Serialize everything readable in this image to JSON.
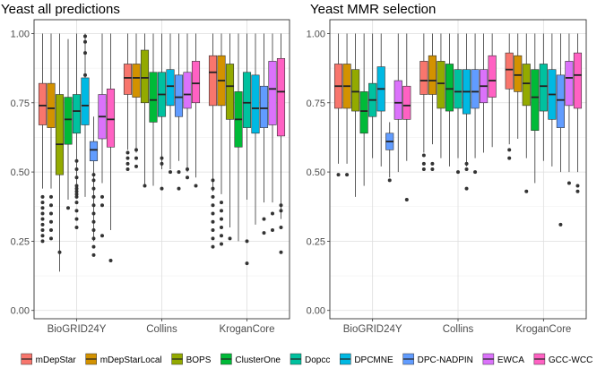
{
  "colors": {
    "mDepStar": "#F8766D",
    "mDepStarLocal": "#D39200",
    "BOPS": "#93AA00",
    "ClusterOne": "#00BA38",
    "Dopcc": "#00C19F",
    "DPCMNE": "#00B9E3",
    "DPC-NADPIN": "#619CFF",
    "EWCA": "#DB72FB",
    "GCC-WCC": "#FF61C3"
  },
  "chart_data": [
    {
      "type": "box",
      "title": "Yeast all predictions",
      "categories": [
        "BioGRID24Y",
        "Collins",
        "KroganCore"
      ],
      "yticks": [
        "0.00",
        "0.25",
        "0.50",
        "0.75",
        "1.00"
      ],
      "ylim": [
        -0.03,
        1.05
      ],
      "grid": true,
      "series": [
        {
          "name": "mDepStar",
          "boxes": [
            {
              "lw": 0.44,
              "q1": 0.67,
              "med": 0.74,
              "q3": 0.82,
              "uw": 1.0,
              "out": [
                0.25,
                0.27,
                0.29,
                0.31,
                0.33,
                0.35,
                0.37,
                0.39,
                0.41
              ]
            },
            {
              "lw": 0.58,
              "q1": 0.78,
              "med": 0.84,
              "q3": 0.89,
              "uw": 1.0,
              "out": [
                0.51,
                0.53,
                0.55,
                0.57
              ]
            },
            {
              "lw": 0.43,
              "q1": 0.74,
              "med": 0.86,
              "q3": 0.92,
              "uw": 1.0,
              "out": [
                0.23,
                0.26,
                0.29,
                0.32,
                0.35,
                0.38,
                0.41,
                0.44,
                0.47
              ]
            }
          ]
        },
        {
          "name": "mDepStarLocal",
          "boxes": [
            {
              "lw": 0.44,
              "q1": 0.66,
              "med": 0.73,
              "q3": 0.82,
              "uw": 1.0,
              "out": [
                0.26,
                0.29,
                0.32,
                0.35,
                0.38,
                0.41
              ]
            },
            {
              "lw": 0.57,
              "q1": 0.77,
              "med": 0.84,
              "q3": 0.89,
              "uw": 1.0,
              "out": [
                0.52,
                0.55,
                0.58
              ]
            },
            {
              "lw": 0.42,
              "q1": 0.74,
              "med": 0.83,
              "q3": 0.92,
              "uw": 1.0,
              "out": [
                0.24,
                0.27,
                0.3,
                0.33,
                0.36,
                0.39
              ]
            }
          ]
        },
        {
          "name": "BOPS",
          "boxes": [
            {
              "lw": 0.14,
              "q1": 0.49,
              "med": 0.6,
              "q3": 0.78,
              "uw": 1.0,
              "out": [
                0.21
              ]
            },
            {
              "lw": 0.45,
              "q1": 0.75,
              "med": 0.84,
              "q3": 0.94,
              "uw": 1.0,
              "out": [
                0.45
              ]
            },
            {
              "lw": 0.3,
              "q1": 0.69,
              "med": 0.81,
              "q3": 0.89,
              "uw": 1.0,
              "out": [
                0.26
              ]
            }
          ]
        },
        {
          "name": "ClusterOne",
          "boxes": [
            {
              "lw": 0.4,
              "q1": 0.6,
              "med": 0.69,
              "q3": 0.77,
              "uw": 0.98,
              "out": [
                0.37
              ]
            },
            {
              "lw": 0.45,
              "q1": 0.68,
              "med": 0.76,
              "q3": 0.86,
              "uw": 1.0,
              "out": []
            },
            {
              "lw": 0.25,
              "q1": 0.59,
              "med": 0.69,
              "q3": 0.79,
              "uw": 1.0,
              "out": []
            }
          ]
        },
        {
          "name": "Dopcc",
          "boxes": [
            {
              "lw": 0.43,
              "q1": 0.64,
              "med": 0.72,
              "q3": 0.78,
              "uw": 1.0,
              "out": [
                0.3,
                0.33,
                0.36,
                0.39,
                0.41,
                0.42,
                0.43,
                0.44,
                0.45,
                0.48,
                0.51,
                0.54
              ]
            },
            {
              "lw": 0.51,
              "q1": 0.7,
              "med": 0.78,
              "q3": 0.86,
              "uw": 1.0,
              "out": [
                0.44,
                0.53,
                0.55
              ]
            },
            {
              "lw": 0.4,
              "q1": 0.66,
              "med": 0.75,
              "q3": 0.86,
              "uw": 1.0,
              "out": [
                0.17,
                0.25
              ]
            }
          ]
        },
        {
          "name": "DPCMNE",
          "boxes": [
            {
              "lw": 0.41,
              "q1": 0.67,
              "med": 0.74,
              "q3": 0.84,
              "uw": 1.0,
              "out": [
                0.99,
                0.97,
                0.93,
                0.85
              ]
            },
            {
              "lw": 0.51,
              "q1": 0.74,
              "med": 0.81,
              "q3": 0.87,
              "uw": 1.0,
              "out": [
                0.5
              ]
            },
            {
              "lw": 0.31,
              "q1": 0.64,
              "med": 0.73,
              "q3": 0.85,
              "uw": 1.0,
              "out": []
            }
          ]
        },
        {
          "name": "DPC-NADPIN",
          "boxes": [
            {
              "lw": 0.25,
              "q1": 0.54,
              "med": 0.58,
              "q3": 0.61,
              "uw": 0.7,
              "out": [
                0.2,
                0.23,
                0.26,
                0.29,
                0.32,
                0.35,
                0.38,
                0.41,
                0.44,
                0.47,
                0.49
              ]
            },
            {
              "lw": 0.54,
              "q1": 0.7,
              "med": 0.77,
              "q3": 0.85,
              "uw": 1.0,
              "out": [
                0.44,
                0.5
              ]
            },
            {
              "lw": 0.39,
              "q1": 0.66,
              "med": 0.73,
              "q3": 0.81,
              "uw": 1.0,
              "out": [
                0.28,
                0.33
              ]
            }
          ]
        },
        {
          "name": "EWCA",
          "boxes": [
            {
              "lw": 0.46,
              "q1": 0.62,
              "med": 0.7,
              "q3": 0.78,
              "uw": 1.0,
              "out": [
                0.27,
                0.38,
                0.41
              ]
            },
            {
              "lw": 0.5,
              "q1": 0.73,
              "med": 0.78,
              "q3": 0.86,
              "uw": 1.0,
              "out": [
                0.48,
                0.51
              ]
            },
            {
              "lw": 0.39,
              "q1": 0.67,
              "med": 0.8,
              "q3": 0.9,
              "uw": 1.0,
              "out": [
                0.29,
                0.35
              ]
            }
          ]
        },
        {
          "name": "GCC-WCC",
          "boxes": [
            {
              "lw": 0.29,
              "q1": 0.59,
              "med": 0.69,
              "q3": 0.8,
              "uw": 1.0,
              "out": [
                0.18
              ]
            },
            {
              "lw": 0.48,
              "q1": 0.75,
              "med": 0.82,
              "q3": 0.9,
              "uw": 1.0,
              "out": [
                0.45
              ]
            },
            {
              "lw": 0.33,
              "q1": 0.63,
              "med": 0.79,
              "q3": 0.91,
              "uw": 1.0,
              "out": [
                0.21,
                0.3,
                0.36,
                0.38
              ]
            }
          ]
        }
      ]
    },
    {
      "type": "box",
      "title": "Yeast MMR selection",
      "categories": [
        "BioGRID24Y",
        "Collins",
        "KroganCore"
      ],
      "yticks": [
        "0.00",
        "0.25",
        "0.50",
        "0.75",
        "1.00"
      ],
      "ylim": [
        -0.03,
        1.05
      ],
      "grid": true,
      "series": [
        {
          "name": "mDepStar",
          "boxes": [
            {
              "lw": 0.53,
              "q1": 0.73,
              "med": 0.81,
              "q3": 0.89,
              "uw": 1.0,
              "out": [
                0.49
              ]
            },
            {
              "lw": 0.57,
              "q1": 0.78,
              "med": 0.83,
              "q3": 0.9,
              "uw": 1.0,
              "out": [
                0.51,
                0.53,
                0.56
              ]
            },
            {
              "lw": 0.6,
              "q1": 0.8,
              "med": 0.87,
              "q3": 0.93,
              "uw": 1.0,
              "out": [
                0.55,
                0.58
              ]
            }
          ]
        },
        {
          "name": "mDepStarLocal",
          "boxes": [
            {
              "lw": 0.53,
              "q1": 0.73,
              "med": 0.81,
              "q3": 0.89,
              "uw": 1.0,
              "out": [
                0.49
              ]
            },
            {
              "lw": 0.6,
              "q1": 0.78,
              "med": 0.83,
              "q3": 0.92,
              "uw": 1.0,
              "out": [
                0.51,
                0.53
              ]
            },
            {
              "lw": 0.62,
              "q1": 0.79,
              "med": 0.85,
              "q3": 0.92,
              "uw": 1.0,
              "out": []
            }
          ]
        },
        {
          "name": "BOPS",
          "boxes": [
            {
              "lw": 0.41,
              "q1": 0.72,
              "med": 0.79,
              "q3": 0.87,
              "uw": 1.0,
              "out": []
            },
            {
              "lw": 0.55,
              "q1": 0.73,
              "med": 0.82,
              "q3": 0.9,
              "uw": 1.0,
              "out": []
            },
            {
              "lw": 0.55,
              "q1": 0.74,
              "med": 0.82,
              "q3": 0.89,
              "uw": 1.0,
              "out": [
                0.43
              ]
            }
          ]
        },
        {
          "name": "ClusterOne",
          "boxes": [
            {
              "lw": 0.45,
              "q1": 0.64,
              "med": 0.72,
              "q3": 0.79,
              "uw": 1.0,
              "out": []
            },
            {
              "lw": 0.52,
              "q1": 0.72,
              "med": 0.8,
              "q3": 0.89,
              "uw": 1.0,
              "out": []
            },
            {
              "lw": 0.46,
              "q1": 0.65,
              "med": 0.77,
              "q3": 0.87,
              "uw": 1.0,
              "out": []
            }
          ]
        },
        {
          "name": "Dopcc",
          "boxes": [
            {
              "lw": 0.55,
              "q1": 0.7,
              "med": 0.76,
              "q3": 0.82,
              "uw": 1.0,
              "out": []
            },
            {
              "lw": 0.55,
              "q1": 0.73,
              "med": 0.79,
              "q3": 0.87,
              "uw": 1.0,
              "out": [
                0.5
              ]
            },
            {
              "lw": 0.54,
              "q1": 0.72,
              "med": 0.81,
              "q3": 0.89,
              "uw": 1.0,
              "out": []
            }
          ]
        },
        {
          "name": "DPCMNE",
          "boxes": [
            {
              "lw": 0.52,
              "q1": 0.72,
              "med": 0.8,
              "q3": 0.88,
              "uw": 1.0,
              "out": []
            },
            {
              "lw": 0.52,
              "q1": 0.71,
              "med": 0.79,
              "q3": 0.87,
              "uw": 1.0,
              "out": [
                0.44,
                0.51,
                0.53
              ]
            },
            {
              "lw": 0.52,
              "q1": 0.69,
              "med": 0.78,
              "q3": 0.87,
              "uw": 1.0,
              "out": []
            }
          ]
        },
        {
          "name": "DPC-NADPIN",
          "boxes": [
            {
              "lw": 0.48,
              "q1": 0.58,
              "med": 0.61,
              "q3": 0.64,
              "uw": 0.68,
              "out": [
                0.47
              ]
            },
            {
              "lw": 0.55,
              "q1": 0.73,
              "med": 0.79,
              "q3": 0.87,
              "uw": 1.0,
              "out": [
                0.5
              ]
            },
            {
              "lw": 0.5,
              "q1": 0.66,
              "med": 0.76,
              "q3": 0.85,
              "uw": 1.0,
              "out": [
                0.31
              ]
            }
          ]
        },
        {
          "name": "EWCA",
          "boxes": [
            {
              "lw": 0.5,
              "q1": 0.69,
              "med": 0.75,
              "q3": 0.83,
              "uw": 1.0,
              "out": []
            },
            {
              "lw": 0.57,
              "q1": 0.75,
              "med": 0.81,
              "q3": 0.87,
              "uw": 1.0,
              "out": []
            },
            {
              "lw": 0.5,
              "q1": 0.74,
              "med": 0.84,
              "q3": 0.9,
              "uw": 1.0,
              "out": [
                0.46
              ]
            }
          ]
        },
        {
          "name": "GCC-WCC",
          "boxes": [
            {
              "lw": 0.54,
              "q1": 0.69,
              "med": 0.74,
              "q3": 0.81,
              "uw": 1.0,
              "out": [
                0.4
              ]
            },
            {
              "lw": 0.59,
              "q1": 0.77,
              "med": 0.83,
              "q3": 0.92,
              "uw": 1.0,
              "out": []
            },
            {
              "lw": 0.5,
              "q1": 0.73,
              "med": 0.85,
              "q3": 0.93,
              "uw": 1.0,
              "out": [
                0.43,
                0.45
              ]
            }
          ]
        }
      ]
    }
  ],
  "legend": {
    "items": [
      "mDepStar",
      "mDepStarLocal",
      "BOPS",
      "ClusterOne",
      "Dopcc",
      "DPCMNE",
      "DPC-NADPIN",
      "EWCA",
      "GCC-WCC"
    ]
  }
}
